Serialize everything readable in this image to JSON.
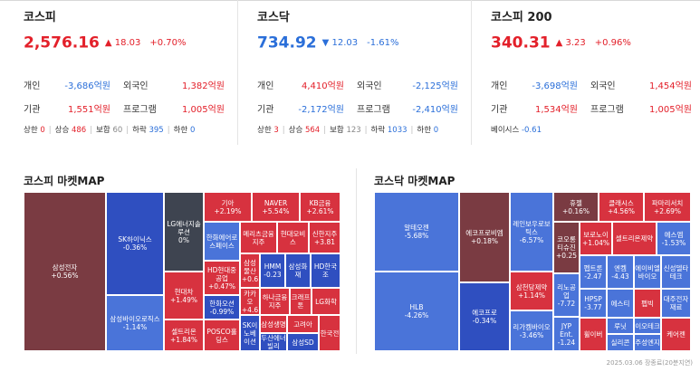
{
  "indices": [
    {
      "name": "코스피",
      "value": "2,576.16",
      "dir": "up",
      "change": "▲ 18.03",
      "pct": "+0.70%",
      "rows": [
        {
          "a_label": "개인",
          "a_value": "-3,686억원",
          "a_dir": "down",
          "b_label": "외국인",
          "b_value": "1,382억원",
          "b_dir": "up"
        },
        {
          "a_label": "기관",
          "a_value": "1,551억원",
          "a_dir": "up",
          "b_label": "프로그램",
          "b_value": "1,005억원",
          "b_dir": "up"
        }
      ],
      "breadth": {
        "upper_label": "상한",
        "upper": "0",
        "rise_label": "상승",
        "rise": "486",
        "flat_label": "보합",
        "flat": "60",
        "fall_label": "하락",
        "fall": "395",
        "lower_label": "하한",
        "lower": "0"
      }
    },
    {
      "name": "코스닥",
      "value": "734.92",
      "dir": "down",
      "change": "▼ 12.03",
      "pct": "-1.61%",
      "rows": [
        {
          "a_label": "개인",
          "a_value": "4,410억원",
          "a_dir": "up",
          "b_label": "외국인",
          "b_value": "-2,125억원",
          "b_dir": "down"
        },
        {
          "a_label": "기관",
          "a_value": "-2,172억원",
          "a_dir": "down",
          "b_label": "프로그램",
          "b_value": "-2,410억원",
          "b_dir": "down"
        }
      ],
      "breadth": {
        "upper_label": "상한",
        "upper": "3",
        "rise_label": "상승",
        "rise": "564",
        "flat_label": "보합",
        "flat": "123",
        "fall_label": "하락",
        "fall": "1033",
        "lower_label": "하한",
        "lower": "0"
      }
    },
    {
      "name": "코스피 200",
      "value": "340.31",
      "dir": "up",
      "change": "▲ 3.23",
      "pct": "+0.96%",
      "rows": [
        {
          "a_label": "개인",
          "a_value": "-3,698억원",
          "a_dir": "down",
          "b_label": "외국인",
          "b_value": "1,454억원",
          "b_dir": "up"
        },
        {
          "a_label": "기관",
          "a_value": "1,534억원",
          "a_dir": "up",
          "b_label": "프로그램",
          "b_value": "1,005억원",
          "b_dir": "up"
        }
      ],
      "basis": {
        "label": "베이시스",
        "value": "-0.61"
      }
    }
  ],
  "kospi_map": {
    "title": "코스피 마켓MAP",
    "tiles": [
      {
        "name": "삼성전자",
        "pct": "+0.56%",
        "color": "dr"
      },
      {
        "name": "SK하이닉스",
        "pct": "-0.36%",
        "color": "b"
      },
      {
        "name": "삼성바이오로직스",
        "pct": "-1.14%",
        "color": "lb"
      },
      {
        "name": "LG에너지솔루션",
        "pct": "0%",
        "color": "g"
      },
      {
        "name": "현대차",
        "pct": "+1.49%",
        "color": "r"
      },
      {
        "name": "셀트리온",
        "pct": "+1.84%",
        "color": "r"
      },
      {
        "name": "기아",
        "pct": "+2.19%",
        "color": "r"
      },
      {
        "name": "NAVER",
        "pct": "+5.54%",
        "color": "r"
      },
      {
        "name": "KB금융",
        "pct": "+2.61%",
        "color": "r"
      },
      {
        "name": "한화에어로스페이스",
        "pct": "",
        "color": "lb"
      },
      {
        "name": "메리츠금융지주",
        "pct": "",
        "color": "r"
      },
      {
        "name": "현대모비스",
        "pct": "",
        "color": "r"
      },
      {
        "name": "신한지주",
        "pct": "+3.81",
        "color": "r"
      },
      {
        "name": "HD현대중공업",
        "pct": "+0.47%",
        "color": "r"
      },
      {
        "name": "삼성물산",
        "pct": "+0.6",
        "color": "r"
      },
      {
        "name": "HMM",
        "pct": "-0.23",
        "color": "b"
      },
      {
        "name": "삼성화재",
        "pct": "",
        "color": "b"
      },
      {
        "name": "HD한국조",
        "pct": "",
        "color": "b"
      },
      {
        "name": "한화오션",
        "pct": "-0.99%",
        "color": "b"
      },
      {
        "name": "카카오",
        "pct": "+4.6",
        "color": "r"
      },
      {
        "name": "하나금융지주",
        "pct": "",
        "color": "r"
      },
      {
        "name": "크래프톤",
        "pct": "",
        "color": "r"
      },
      {
        "name": "LG화학",
        "pct": "",
        "color": "r"
      },
      {
        "name": "POSCO홀딩스",
        "pct": "",
        "color": "r"
      },
      {
        "name": "SK이노베이션",
        "pct": "",
        "color": "b"
      },
      {
        "name": "삼성생명",
        "pct": "",
        "color": "r"
      },
      {
        "name": "두산에너빌리",
        "pct": "",
        "color": "b"
      },
      {
        "name": "고려아",
        "pct": "",
        "color": "r"
      },
      {
        "name": "삼성SD",
        "pct": "",
        "color": "b"
      },
      {
        "name": "한국전",
        "pct": "",
        "color": "r"
      }
    ]
  },
  "kosdaq_map": {
    "title": "코스닥 마켓MAP",
    "tiles": [
      {
        "name": "알테오젠",
        "pct": "-5.68%",
        "color": "lb"
      },
      {
        "name": "HLB",
        "pct": "-4.26%",
        "color": "lb"
      },
      {
        "name": "에코프로비엠",
        "pct": "+0.18%",
        "color": "dr"
      },
      {
        "name": "에코프로",
        "pct": "-0.34%",
        "color": "b"
      },
      {
        "name": "레인보우로보틱스",
        "pct": "-6.57%",
        "color": "lb"
      },
      {
        "name": "삼천당제약",
        "pct": "+1.14%",
        "color": "r"
      },
      {
        "name": "리가켐바이오",
        "pct": "-3.46%",
        "color": "lb"
      },
      {
        "name": "휴젤",
        "pct": "+0.16%",
        "color": "dr"
      },
      {
        "name": "클래시스",
        "pct": "+4.56%",
        "color": "r"
      },
      {
        "name": "파마리서치",
        "pct": "+2.69%",
        "color": "r"
      },
      {
        "name": "코오롱티슈진",
        "pct": "+0.25",
        "color": "dr"
      },
      {
        "name": "보로노이",
        "pct": "+1.04%",
        "color": "r"
      },
      {
        "name": "셀트리온제약",
        "pct": "",
        "color": "r"
      },
      {
        "name": "에스엠",
        "pct": "-1.53%",
        "color": "lb"
      },
      {
        "name": "리노공업",
        "pct": "-7.72",
        "color": "lb"
      },
      {
        "name": "펩트론",
        "pct": "-2.47",
        "color": "lb"
      },
      {
        "name": "엔켐",
        "pct": "-4.43",
        "color": "lb"
      },
      {
        "name": "에이비엘바이오",
        "pct": "",
        "color": "lb"
      },
      {
        "name": "신성델타테크",
        "pct": "",
        "color": "lb"
      },
      {
        "name": "HPSP",
        "pct": "-3.77",
        "color": "lb"
      },
      {
        "name": "에스티",
        "pct": "",
        "color": "lb"
      },
      {
        "name": "펩빅",
        "pct": "",
        "color": "r"
      },
      {
        "name": "대주전자재료",
        "pct": "",
        "color": "lb"
      },
      {
        "name": "JYP Ent.",
        "pct": "-1.24",
        "color": "lb"
      },
      {
        "name": "휠이버",
        "pct": "",
        "color": "r"
      },
      {
        "name": "루닛",
        "pct": "",
        "color": "lb"
      },
      {
        "name": "이오테크",
        "pct": "",
        "color": "lb"
      },
      {
        "name": "실리콘",
        "pct": "",
        "color": "lb"
      },
      {
        "name": "주성엔지",
        "pct": "",
        "color": "lb"
      },
      {
        "name": "케어젠",
        "pct": "",
        "color": "r"
      }
    ]
  },
  "footer": "2025.03.06 장종료(20분지연)"
}
